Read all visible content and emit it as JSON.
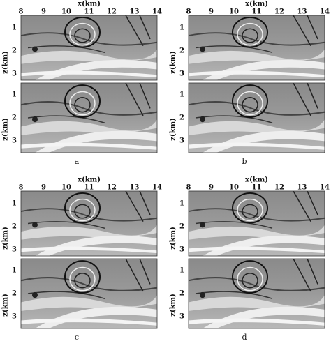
{
  "panels": [
    {
      "caption": "a",
      "x_label": "x(km)",
      "z_label": "z(km)",
      "x_ticks": [
        8,
        9,
        10,
        11,
        12,
        13,
        14
      ],
      "z_ticks": [
        1,
        2,
        3
      ]
    },
    {
      "caption": "b",
      "x_label": "x(km)",
      "z_label": "z(km)",
      "x_ticks": [
        8,
        9,
        10,
        11,
        12,
        13,
        14
      ],
      "z_ticks": [
        1,
        2,
        3
      ]
    },
    {
      "caption": "c",
      "x_label": "x(km)",
      "z_label": "z(km)",
      "x_ticks": [
        8,
        9,
        10,
        11,
        12,
        13,
        14
      ],
      "z_ticks": [
        1,
        2,
        3
      ]
    },
    {
      "caption": "d",
      "x_label": "x(km)",
      "z_label": "z(km)",
      "x_ticks": [
        8,
        9,
        10,
        11,
        12,
        13,
        14
      ],
      "z_ticks": [
        1,
        2,
        3
      ]
    }
  ]
}
